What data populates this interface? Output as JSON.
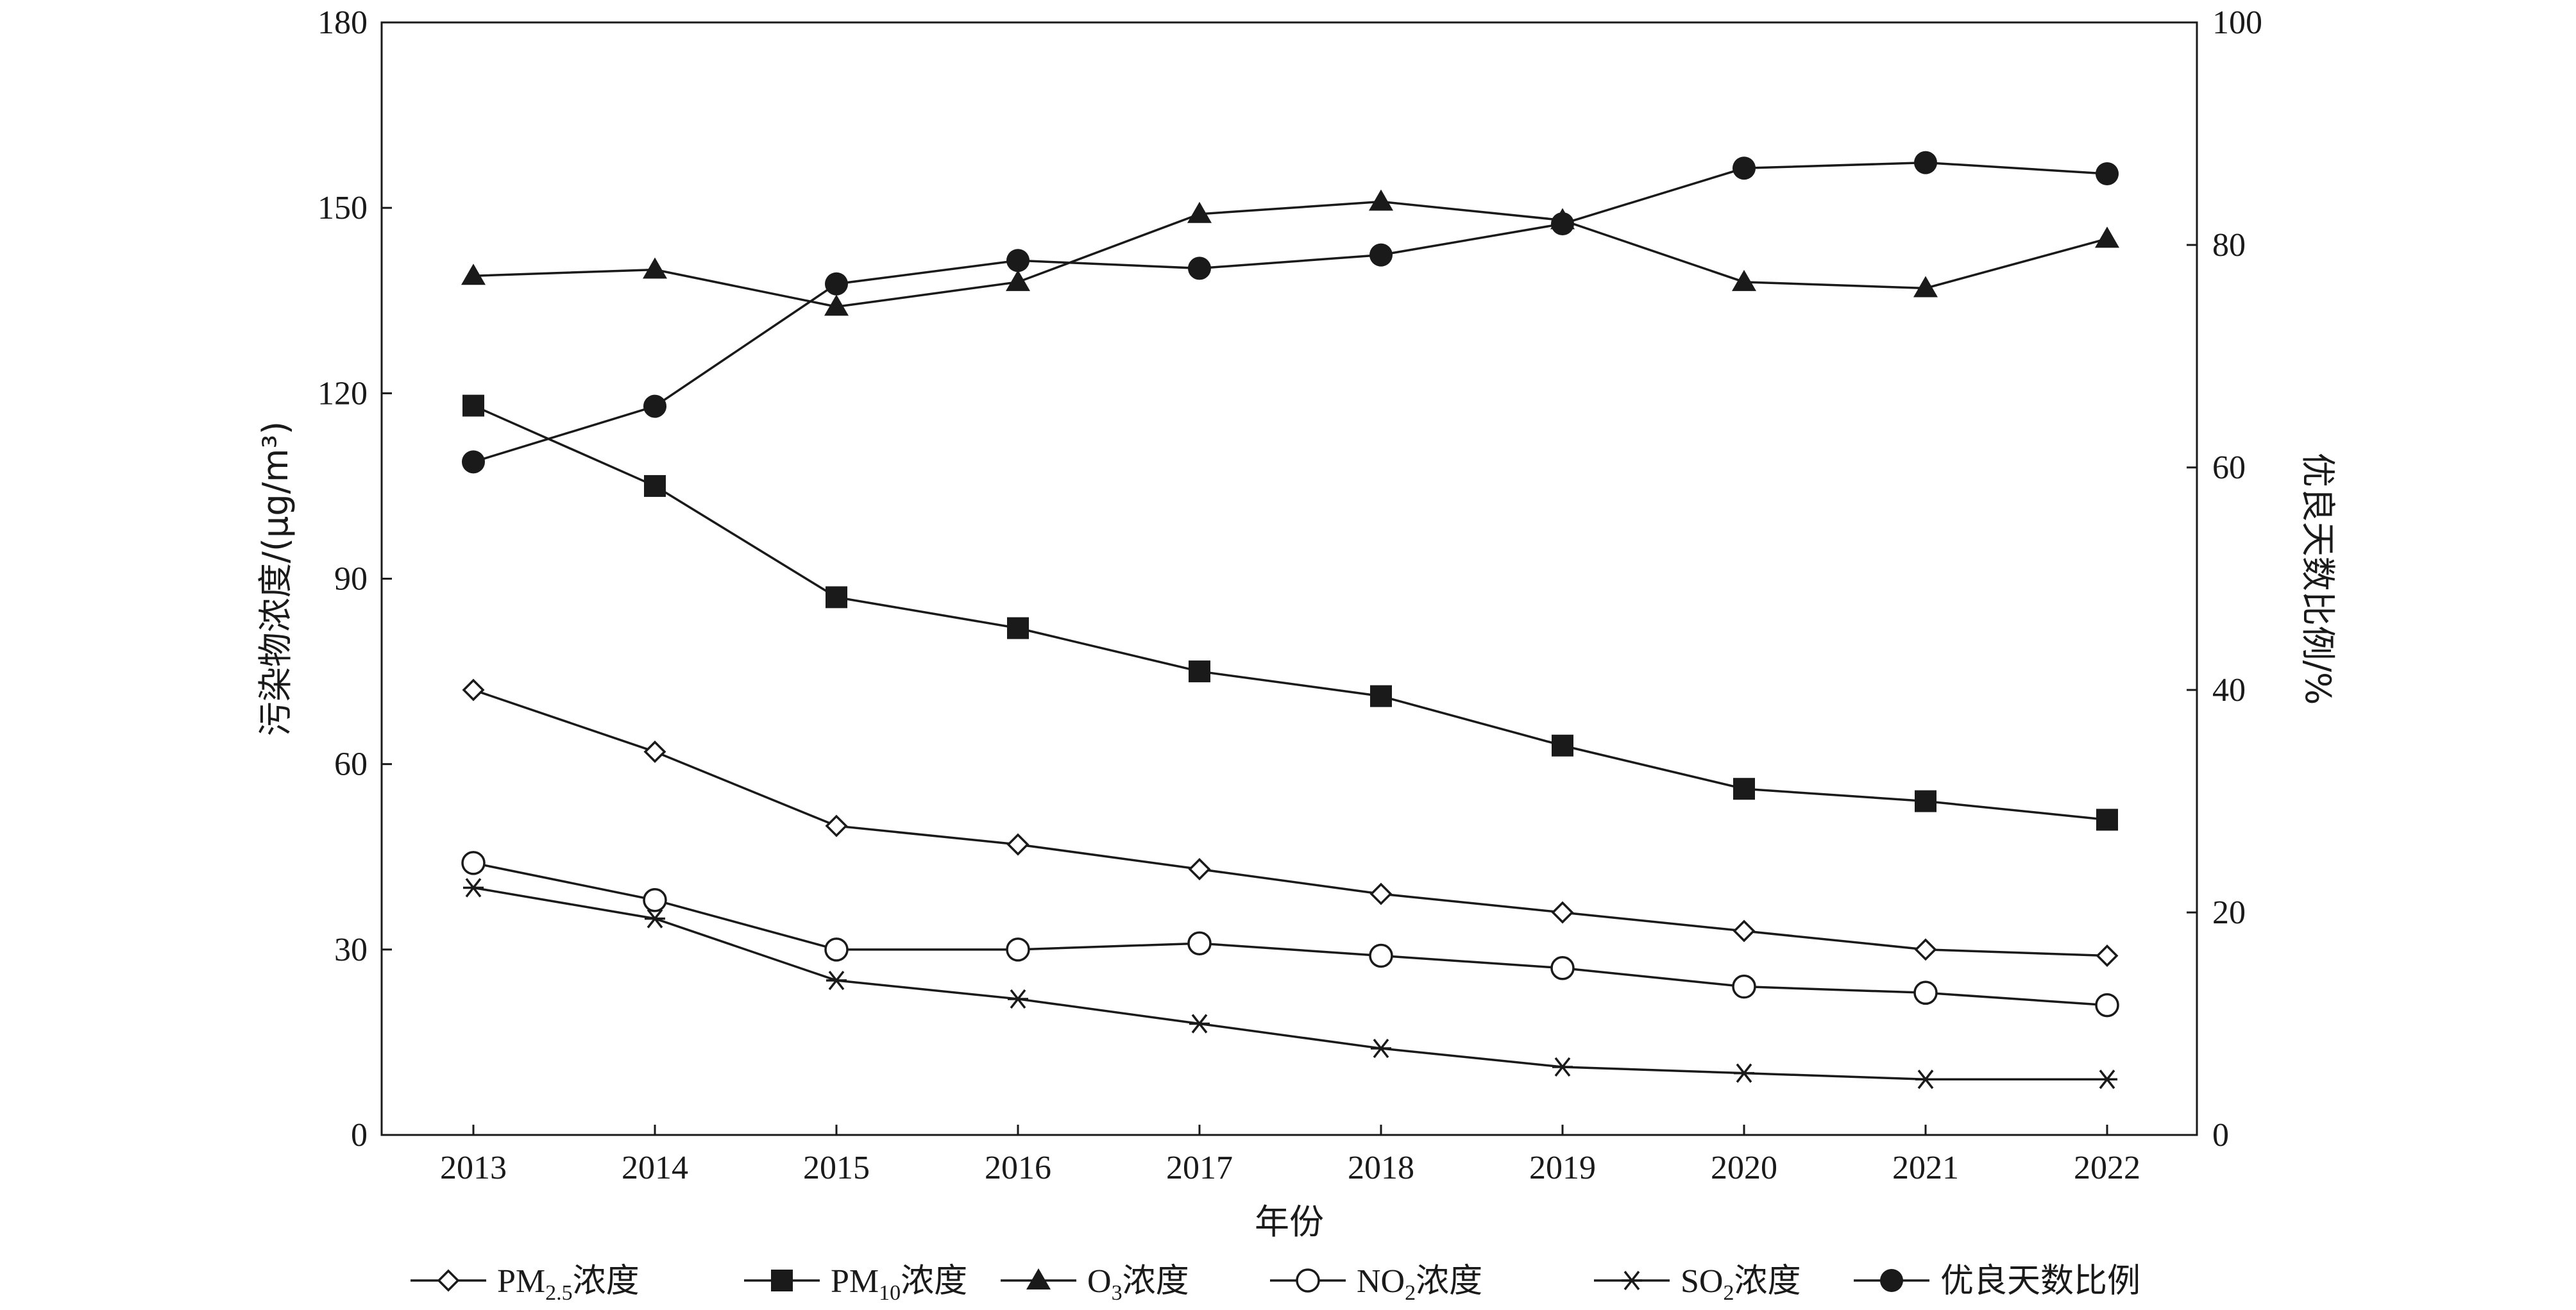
{
  "chart_data": {
    "type": "line",
    "xlabel": "年份",
    "ylabel_left": "污染物浓度/(μg/m³)",
    "ylabel_right": "优良天数比例/%",
    "x": [
      "2013",
      "2014",
      "2015",
      "2016",
      "2017",
      "2018",
      "2019",
      "2020",
      "2021",
      "2022"
    ],
    "ylim_left": [
      0,
      180
    ],
    "yticks_left": [
      "0",
      "30",
      "60",
      "90",
      "120",
      "150",
      "180"
    ],
    "ylim_right": [
      0,
      100
    ],
    "yticks_right": [
      "0",
      "20",
      "40",
      "60",
      "80",
      "100"
    ],
    "grid": false,
    "legend_position": "bottom",
    "series": [
      {
        "name": "PM2.5浓度",
        "legend": {
          "pre": "PM",
          "sub": "2.5",
          "post": "浓度"
        },
        "axis": "left",
        "marker": "diamond-open",
        "values": [
          72,
          62,
          50,
          47,
          43,
          39,
          36,
          33,
          30,
          29
        ]
      },
      {
        "name": "PM10浓度",
        "legend": {
          "pre": "PM",
          "sub": "10",
          "post": "浓度"
        },
        "axis": "left",
        "marker": "square-filled",
        "values": [
          118,
          105,
          87,
          82,
          75,
          71,
          63,
          56,
          54,
          51
        ]
      },
      {
        "name": "O3浓度",
        "legend": {
          "pre": "O",
          "sub": "3",
          "post": "浓度"
        },
        "axis": "left",
        "marker": "triangle-filled",
        "values": [
          139,
          140,
          134,
          138,
          149,
          151,
          148,
          138,
          137,
          145
        ]
      },
      {
        "name": "NO2浓度",
        "legend": {
          "pre": "NO",
          "sub": "2",
          "post": "浓度"
        },
        "axis": "left",
        "marker": "circle-open",
        "values": [
          44,
          38,
          30,
          30,
          31,
          29,
          27,
          24,
          23,
          21
        ]
      },
      {
        "name": "SO2浓度",
        "legend": {
          "pre": "SO",
          "sub": "2",
          "post": "浓度"
        },
        "axis": "left",
        "marker": "asterisk",
        "values": [
          40,
          35,
          25,
          22,
          18,
          14,
          11,
          10,
          9,
          9
        ]
      },
      {
        "name": "优良天数比例",
        "legend": {
          "pre": "优良天数比例",
          "sub": "",
          "post": ""
        },
        "axis": "right",
        "marker": "circle-filled",
        "values": [
          60.5,
          65.5,
          76.5,
          78.6,
          77.9,
          79.1,
          81.9,
          86.9,
          87.4,
          86.4
        ]
      }
    ]
  }
}
